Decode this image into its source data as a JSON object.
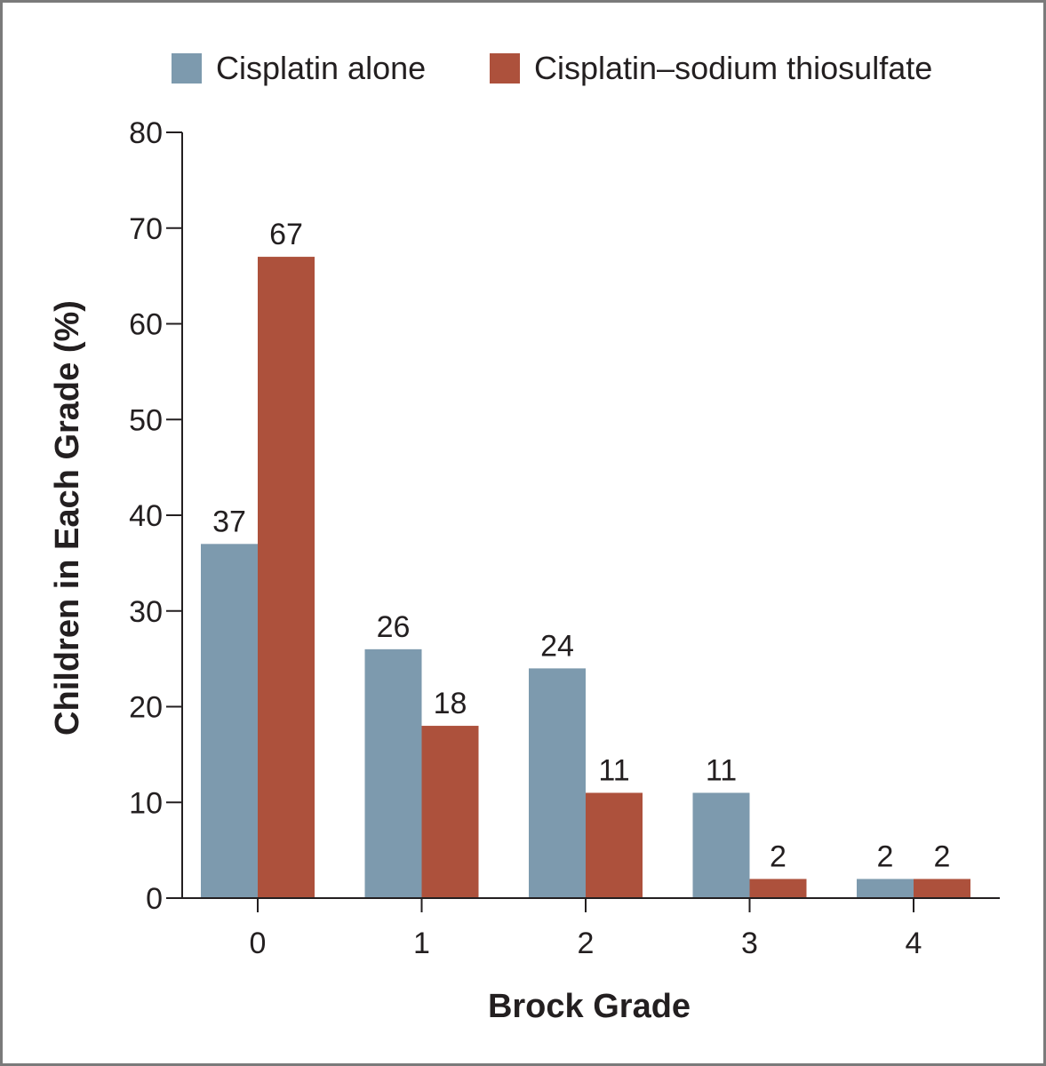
{
  "chart_data": {
    "type": "bar",
    "title": "",
    "xlabel": "Brock Grade",
    "ylabel": "Children in Each Grade (%)",
    "ylim": [
      0,
      80
    ],
    "yticks": [
      0,
      10,
      20,
      30,
      40,
      50,
      60,
      70,
      80
    ],
    "categories": [
      "0",
      "1",
      "2",
      "3",
      "4"
    ],
    "series": [
      {
        "name": "Cisplatin alone",
        "color": "#7d9aae",
        "values": [
          37,
          26,
          24,
          11,
          2
        ]
      },
      {
        "name": "Cisplatin–sodium thiosulfate",
        "color": "#ad513c",
        "values": [
          67,
          18,
          11,
          2,
          2
        ]
      }
    ],
    "legend_position": "top",
    "grid": false
  }
}
